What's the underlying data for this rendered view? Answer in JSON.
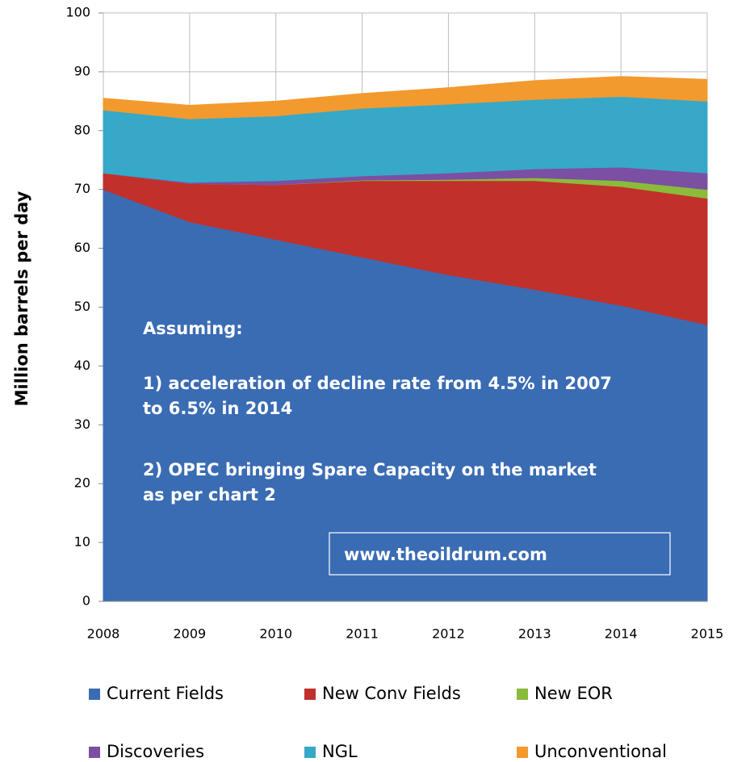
{
  "chart_data": {
    "type": "stacked-area",
    "y_label": "Million barrels per day",
    "x": [
      "2008",
      "2009",
      "2010",
      "2011",
      "2012",
      "2013",
      "2014",
      "2015"
    ],
    "series": [
      {
        "name": "Current Fields",
        "color": "#3a6cb4",
        "values": [
          70,
          64.5,
          61.5,
          58.5,
          55.5,
          53,
          50.3,
          47
        ]
      },
      {
        "name": "New Conv Fields",
        "color": "#c2302b",
        "values": [
          2.8,
          6.5,
          9.3,
          13,
          16,
          18.5,
          20.2,
          21.5
        ]
      },
      {
        "name": "New EOR",
        "color": "#8bbb3b",
        "values": [
          0,
          0,
          0,
          0.1,
          0.2,
          0.5,
          1,
          1.5
        ]
      },
      {
        "name": "Discoveries",
        "color": "#7b4fa2",
        "values": [
          0,
          0.2,
          0.7,
          0.7,
          1.1,
          1.5,
          2.3,
          2.8
        ]
      },
      {
        "name": "NGL",
        "color": "#37a8c8",
        "values": [
          10.7,
          10.8,
          11,
          11.5,
          11.7,
          11.8,
          12,
          12.2
        ]
      },
      {
        "name": "Unconventional",
        "color": "#f29a2e",
        "values": [
          2,
          2.3,
          2.5,
          2.5,
          2.8,
          3.2,
          3.4,
          3.7
        ]
      }
    ],
    "ylim": [
      0,
      100
    ],
    "yticks": [
      0,
      10,
      20,
      30,
      40,
      50,
      60,
      70,
      80,
      90,
      100
    ],
    "grid": true,
    "annotations": [
      "Assuming:",
      "1) acceleration of decline rate from 4.5% in 2007",
      "to 6.5% in 2014",
      "2) OPEC bringing Spare Capacity on the market",
      "as per chart 2"
    ],
    "source": "www.theoildrum.com"
  }
}
